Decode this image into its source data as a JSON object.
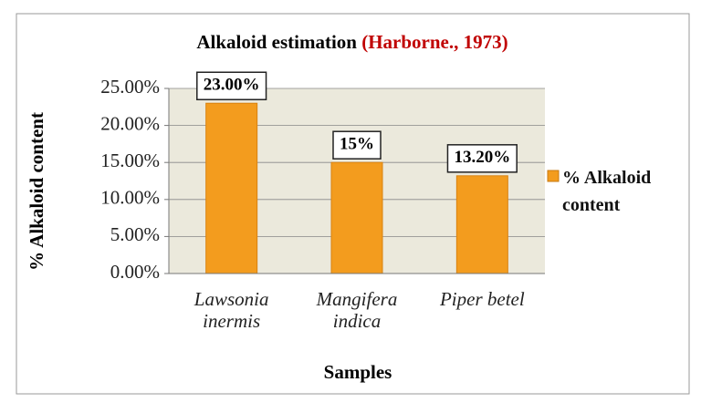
{
  "chart_data": {
    "type": "bar",
    "title": "Alkaloid estimation",
    "title_source": "(Harborne., 1973)",
    "x_label": "Samples",
    "y_label": "% Alkaloid content",
    "categories": [
      "Lawsonia inermis",
      "Mangifera indica",
      "Piper betel"
    ],
    "series": [
      {
        "name": "% Alkaloid content",
        "color": "#f39c1e",
        "values": [
          23,
          15,
          13.2
        ],
        "value_labels": [
          "23.00%",
          "15%",
          "13.20%"
        ]
      }
    ],
    "ylim": [
      0,
      25
    ],
    "yticks": [
      {
        "value": 0,
        "label": "0.00%"
      },
      {
        "value": 5,
        "label": "5.00%"
      },
      {
        "value": 10,
        "label": "10.00%"
      },
      {
        "value": 15,
        "label": "15.00%"
      },
      {
        "value": 20,
        "label": "20.00%"
      },
      {
        "value": 25,
        "label": "25.00%"
      }
    ],
    "grid": true
  }
}
